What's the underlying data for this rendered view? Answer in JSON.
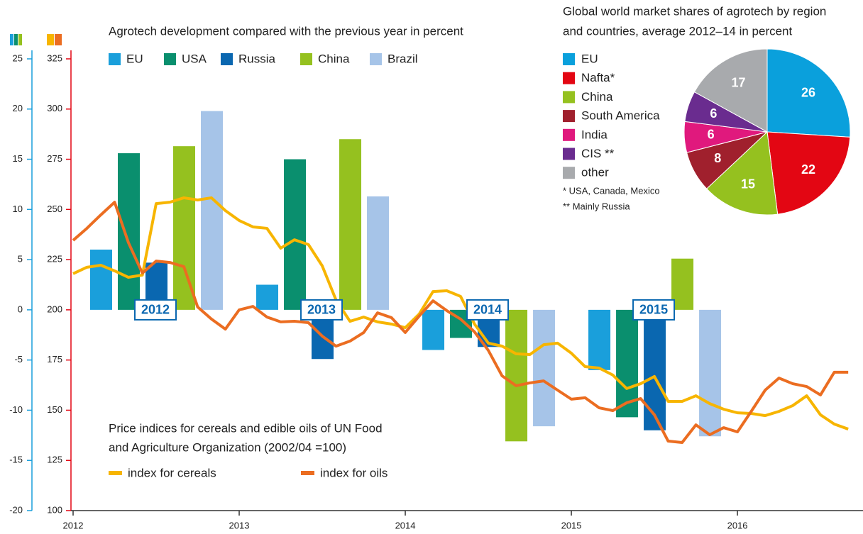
{
  "chart_data": [
    {
      "type": "bar",
      "title": "Agrotech development compared with the previous year in percent",
      "categories": [
        "2012",
        "2013",
        "2014",
        "2015"
      ],
      "series": [
        {
          "name": "EU",
          "color": "#1a9fdb",
          "values": [
            6.0,
            2.5,
            -4.0,
            -6.0
          ]
        },
        {
          "name": "USA",
          "color": "#0a8f6e",
          "values": [
            15.6,
            15.0,
            -2.8,
            -10.7
          ]
        },
        {
          "name": "Russia",
          "color": "#0a67b0",
          "values": [
            4.7,
            -4.9,
            -3.7,
            -12.0
          ]
        },
        {
          "name": "China",
          "color": "#95c11f",
          "values": [
            16.3,
            17.0,
            -13.1,
            5.1
          ]
        },
        {
          "name": "Brazil",
          "color": "#a6c4e8",
          "values": [
            19.8,
            11.3,
            -11.6,
            -12.6
          ]
        }
      ],
      "ylim": [
        -20,
        25
      ],
      "yticks": [
        -20,
        -15,
        -10,
        -5,
        0,
        5,
        10,
        15,
        20,
        25
      ],
      "axis_color": "#1a9fdb"
    },
    {
      "type": "line",
      "title_lines": [
        "Price indices for cereals and edible oils of UN Food",
        "and Agriculture Organization (2002/04 =100)"
      ],
      "x": [
        2012,
        2012.083,
        2012.167,
        2012.25,
        2012.333,
        2012.417,
        2012.5,
        2012.583,
        2012.667,
        2012.75,
        2012.833,
        2012.917,
        2013,
        2013.083,
        2013.167,
        2013.25,
        2013.333,
        2013.417,
        2013.5,
        2013.583,
        2013.667,
        2013.75,
        2013.833,
        2013.917,
        2014,
        2014.083,
        2014.167,
        2014.25,
        2014.333,
        2014.417,
        2014.5,
        2014.583,
        2014.667,
        2014.75,
        2014.833,
        2014.917,
        2015,
        2015.083,
        2015.167,
        2015.25,
        2015.333,
        2015.417,
        2015.5,
        2015.583,
        2015.667,
        2015.75,
        2015.833,
        2015.917,
        2016,
        2016.083,
        2016.167,
        2016.25,
        2016.333,
        2016.417,
        2016.5,
        2016.583,
        2016.667
      ],
      "series": [
        {
          "name": "index for cereals",
          "color": "#f7b500",
          "values": [
            218.0,
            221.2,
            222.2,
            219.4,
            216.2,
            217.3,
            252.9,
            253.6,
            255.8,
            254.7,
            255.8,
            249.4,
            244.5,
            241.3,
            240.6,
            230.7,
            234.9,
            232.5,
            221.9,
            204.9,
            194.3,
            196.4,
            194.0,
            192.9,
            191.1,
            197.8,
            209.1,
            209.5,
            206.7,
            192.9,
            183.4,
            181.9,
            178.1,
            177.7,
            182.6,
            183.4,
            178.4,
            171.7,
            171.0,
            167.5,
            160.8,
            163.2,
            166.8,
            154.4,
            154.4,
            157.2,
            153.3,
            150.5,
            148.7,
            148.4,
            147.3,
            149.4,
            152.3,
            157.2,
            147.7,
            143.1,
            140.6
          ]
        },
        {
          "name": "index for oils",
          "color": "#eb6d21",
          "values": [
            234.6,
            240.6,
            247.3,
            253.6,
            233.5,
            218.3,
            224.3,
            223.6,
            221.5,
            201.4,
            195.4,
            190.4,
            200.0,
            201.7,
            196.4,
            194.0,
            194.3,
            193.6,
            186.9,
            181.9,
            184.4,
            188.7,
            198.5,
            196.1,
            188.7,
            196.8,
            204.5,
            199.6,
            195.4,
            189.0,
            179.8,
            167.1,
            162.2,
            163.6,
            164.6,
            160.0,
            155.5,
            156.2,
            151.2,
            149.8,
            153.7,
            155.8,
            147.7,
            134.6,
            133.9,
            142.7,
            137.8,
            141.3,
            139.2,
            149.4,
            160.0,
            166.0,
            163.2,
            161.8,
            157.6,
            168.9,
            168.9
          ]
        }
      ],
      "xlim": [
        2012,
        2016.756
      ],
      "xticks": [
        2012,
        2013,
        2014,
        2015,
        2016
      ],
      "ylim": [
        100,
        325
      ],
      "yticks": [
        100,
        125,
        150,
        175,
        200,
        225,
        250,
        275,
        300,
        325
      ],
      "axis_color": "#e30613"
    },
    {
      "type": "pie",
      "title_lines": [
        "Global world market shares of agrotech by region",
        "and countries, average 2012–14 in percent"
      ],
      "categories": [
        "EU",
        "Nafta*",
        "China",
        "South America",
        "India",
        "CIS **",
        "other"
      ],
      "values": [
        26,
        22,
        15,
        8,
        6,
        6,
        17
      ],
      "colors": [
        "#0aa0dc",
        "#e30613",
        "#95c11f",
        "#a0202d",
        "#e0197d",
        "#6a2c8f",
        "#a8aaad"
      ],
      "notes": [
        "* USA, Canada, Mexico",
        "** Mainly Russia"
      ]
    }
  ]
}
